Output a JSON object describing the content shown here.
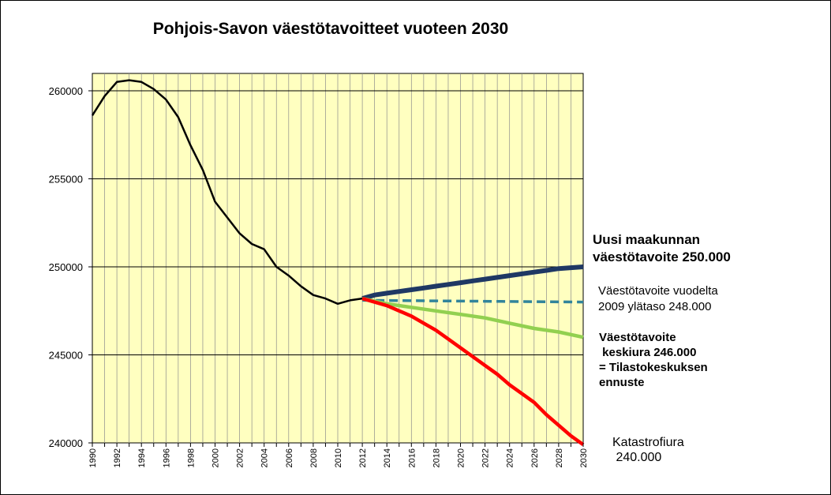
{
  "chart_data": {
    "type": "line",
    "title": "Pohjois-Savon väestötavoitteet vuoteen 2030",
    "xlabel": "",
    "ylabel": "",
    "xlim": [
      1990,
      2030
    ],
    "ylim": [
      240000,
      261000
    ],
    "y_ticks": [
      "240000",
      "245000",
      "250000",
      "255000",
      "260000"
    ],
    "x_ticks": [
      "1990",
      "1992",
      "1994",
      "1996",
      "1998",
      "2000",
      "2002",
      "2004",
      "2006",
      "2008",
      "2010",
      "2012",
      "2014",
      "2016",
      "2018",
      "2020",
      "2022",
      "2024",
      "2026",
      "2028",
      "2030"
    ],
    "grid": "vertical every year, horizontal at major ticks",
    "plot_background": "#FFFFC0",
    "series": [
      {
        "color": "#000000",
        "style": "solid",
        "x": [
          1990,
          1991,
          1992,
          1993,
          1994,
          1995,
          1996,
          1997,
          1998,
          1999,
          2000,
          2001,
          2002,
          2003,
          2004,
          2005,
          2006,
          2007,
          2008,
          2009,
          2010,
          2011,
          2012
        ],
        "values": [
          258600,
          259700,
          260500,
          260600,
          260500,
          260100,
          259500,
          258500,
          256900,
          255500,
          253700,
          252800,
          251900,
          251300,
          251000,
          250000,
          249500,
          248900,
          248400,
          248200,
          247900,
          248100,
          248200
        ]
      },
      {
        "color": "#1F3864",
        "style": "solid-thick",
        "x": [
          2012,
          2013,
          2014,
          2015,
          2016,
          2017,
          2018,
          2019,
          2020,
          2021,
          2022,
          2023,
          2024,
          2025,
          2026,
          2027,
          2028,
          2029,
          2030
        ],
        "values": [
          248200,
          248400,
          248500,
          248600,
          248700,
          248800,
          248900,
          249000,
          249100,
          249200,
          249300,
          249400,
          249500,
          249600,
          249700,
          249800,
          249900,
          249950,
          250000
        ]
      },
      {
        "color": "#31849B",
        "style": "dashed",
        "x": [
          2012,
          2030
        ],
        "values": [
          248100,
          248000
        ]
      },
      {
        "color": "#92D050",
        "style": "solid-thick",
        "x": [
          2012,
          2014,
          2016,
          2018,
          2020,
          2022,
          2024,
          2026,
          2028,
          2030
        ],
        "values": [
          248200,
          247900,
          247700,
          247500,
          247300,
          247100,
          246800,
          246500,
          246300,
          246000
        ]
      },
      {
        "color": "#FF0000",
        "style": "solid-thick",
        "x": [
          2012,
          2013,
          2014,
          2015,
          2016,
          2017,
          2018,
          2019,
          2020,
          2021,
          2022,
          2023,
          2024,
          2025,
          2026,
          2027,
          2028,
          2029,
          2030
        ],
        "values": [
          248200,
          248000,
          247800,
          247500,
          247200,
          246800,
          246400,
          245900,
          245400,
          244900,
          244400,
          243900,
          243300,
          242800,
          242300,
          241600,
          241000,
          240400,
          239900
        ]
      }
    ],
    "annotations": [
      {
        "lines": [
          "Uusi maakunnan",
          "väestötavoite 250.000"
        ],
        "bold": true
      },
      {
        "lines": [
          "Väestötavoite  vuodelta",
          "2009  ylätaso 248.000"
        ],
        "bold": false
      },
      {
        "lines": [
          "Väestötavoite",
          " keskiura 246.000",
          "= Tilastokeskuksen",
          "ennuste"
        ],
        "bold": true
      },
      {
        "lines": [
          "Katastrofiura",
          " 240.000"
        ],
        "bold": false
      }
    ]
  }
}
